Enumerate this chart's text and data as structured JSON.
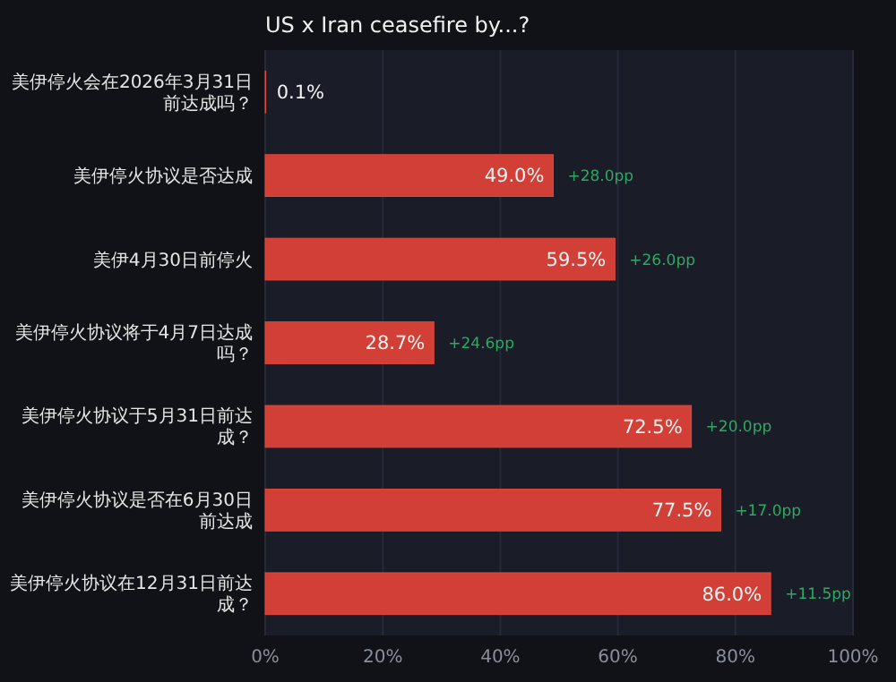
{
  "chart_data": {
    "type": "bar",
    "orientation": "horizontal",
    "title": "US x Iran ceasefire by...?",
    "categories": [
      "美伊停火会在2026年3月31日前达成吗？",
      "美伊停火协议是否达成",
      "美伊4月30日前停火",
      "美伊停火协议将于4月7日达成吗？",
      "美伊停火协议于5月31日前达成？",
      "美伊停火协议是否在6月30日前达成",
      "美伊停火协议在12月31日前达成？"
    ],
    "values": [
      0.1,
      49.0,
      59.5,
      28.7,
      72.5,
      77.5,
      86.0
    ],
    "value_labels": [
      "0.1%",
      "49.0%",
      "59.5%",
      "28.7%",
      "72.5%",
      "77.5%",
      "86.0%"
    ],
    "color": "#d13f36",
    "xlim": [
      0,
      100
    ],
    "xticks": [
      {
        "value": 0,
        "label": "0%"
      },
      {
        "value": 20,
        "label": "20%"
      },
      {
        "value": 40,
        "label": "40%"
      },
      {
        "value": 60,
        "label": "60%"
      },
      {
        "value": 80,
        "label": "80%"
      },
      {
        "value": 100,
        "label": "100%"
      }
    ],
    "grid": "x",
    "annotations": [
      {
        "text": "+28.0pp",
        "x": 49.0,
        "y": "美伊停火协议是否达成"
      },
      {
        "text": "+26.0pp",
        "x": 59.5,
        "y": "美伊4月30日前停火"
      },
      {
        "text": "+24.6pp",
        "x": 28.7,
        "y": "美伊停火协议将于4月7日达成吗？"
      },
      {
        "text": "+20.0pp",
        "x": 72.5,
        "y": "美伊停火协议于5月31日前达成？"
      },
      {
        "text": "+17.0pp",
        "x": 77.5,
        "y": "美伊停火协议是否在6月30日前达成"
      },
      {
        "text": "+11.5pp",
        "x": 86.0,
        "y": "美伊停火协议在12月31日前达成？"
      }
    ]
  }
}
